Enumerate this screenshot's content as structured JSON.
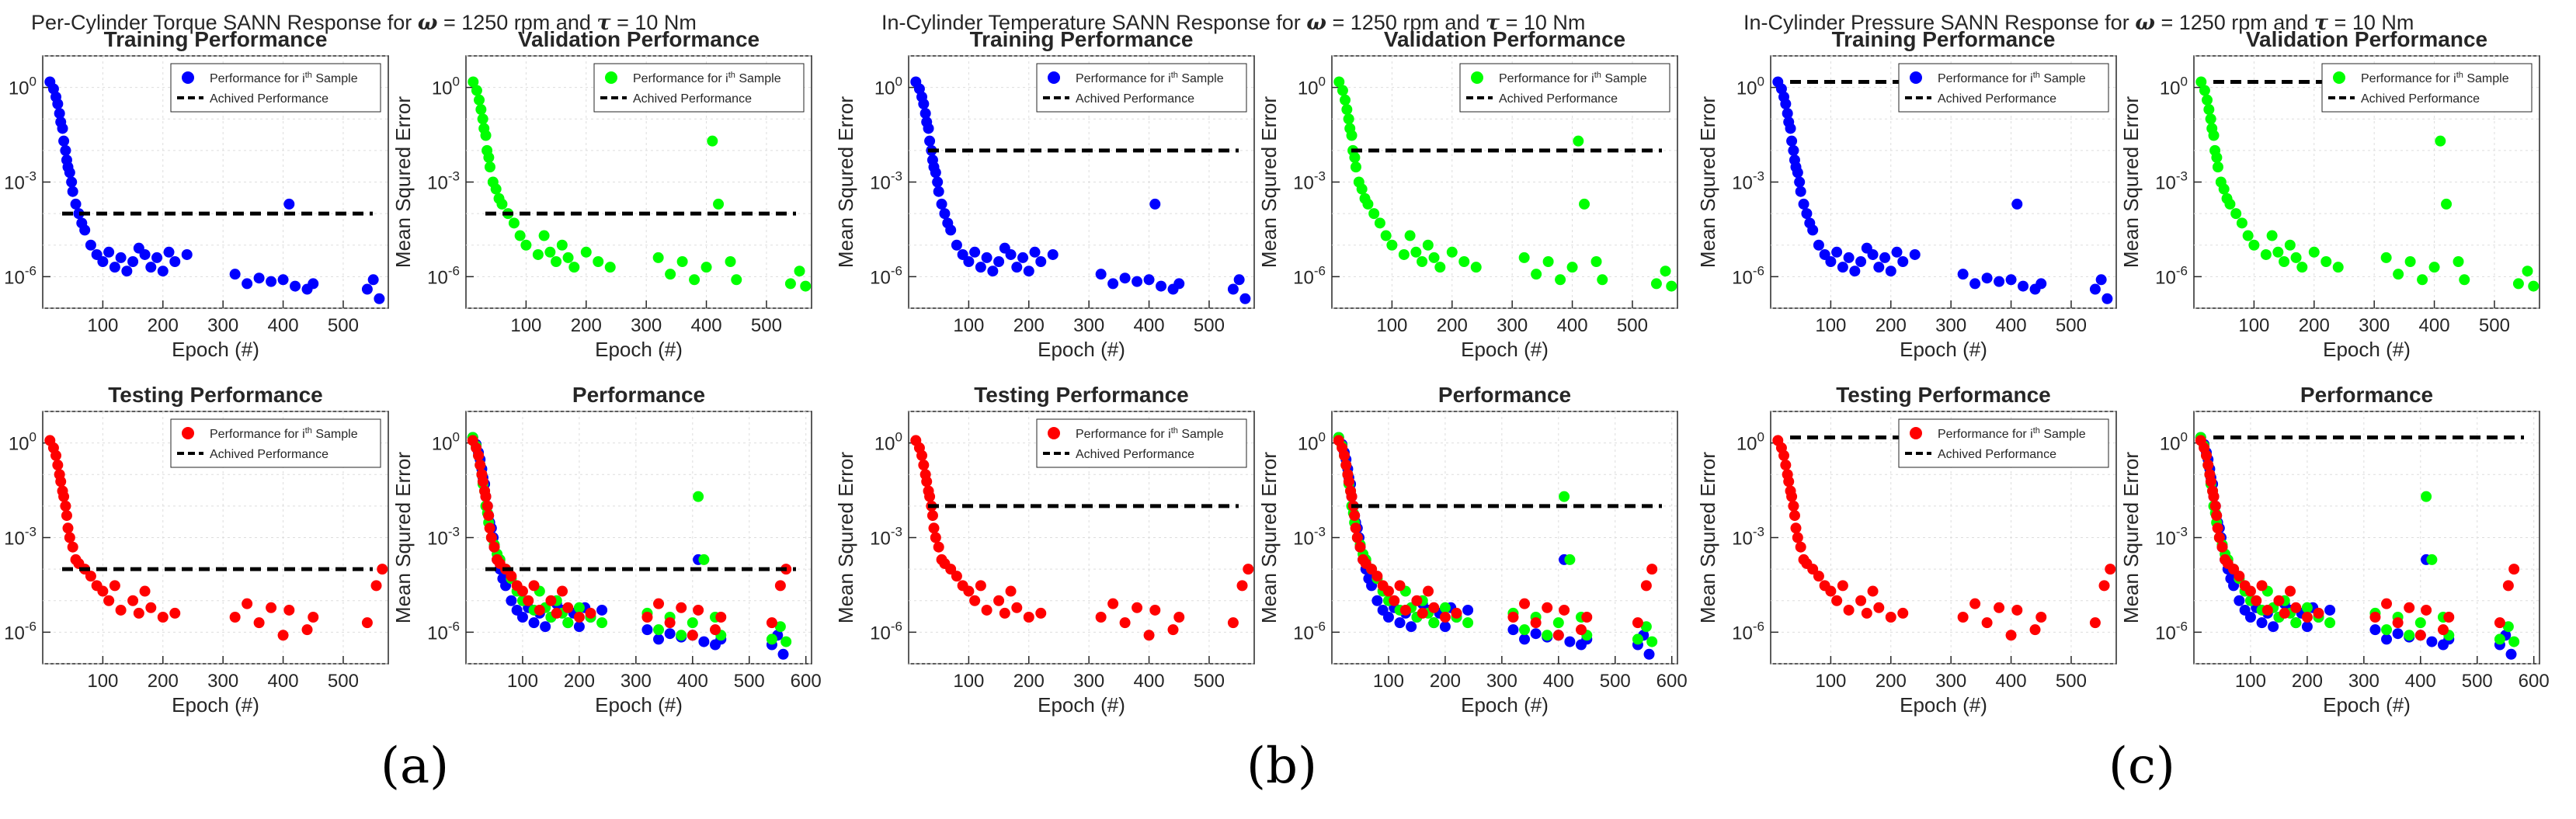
{
  "figure": {
    "panels": [
      {
        "id": "a",
        "caption": "(a)",
        "title_prefix": "Per-Cylinder Torque SANN Response for",
        "title_mid": "= 1250 rpm and",
        "title_suffix": "= 10 Nm",
        "omega_symbol": "ω",
        "tau_symbol": "τ"
      },
      {
        "id": "b",
        "caption": "(b)",
        "title_prefix": "In-Cylinder Temperature SANN Response for",
        "title_mid": "= 1250 rpm and",
        "title_suffix": "= 10 Nm",
        "omega_symbol": "ω",
        "tau_symbol": "τ"
      },
      {
        "id": "c",
        "caption": "(c)",
        "title_prefix": "In-Cylinder Pressure SANN Response for",
        "title_mid": "= 1250 rpm and",
        "title_suffix": "= 10 Nm",
        "omega_symbol": "ω",
        "tau_symbol": "τ"
      }
    ],
    "legend": {
      "sample_label": "Performance for i",
      "sample_sup": "th",
      "sample_tail": " Sample",
      "achieved_label": "Achived Performance"
    },
    "axes": {
      "xlabel": "Epoch (#)",
      "ylabel": "Mean Squred Error",
      "ytick_base": "10",
      "ytick_exponents": [
        "0",
        "-3",
        "-6"
      ],
      "xticks_top": [
        "100",
        "200",
        "300",
        "400",
        "500"
      ],
      "xticks_perf": [
        "100",
        "200",
        "300",
        "400",
        "500",
        "600"
      ]
    },
    "colors": {
      "training": "#0000ff",
      "validation": "#00ff00",
      "testing": "#ff0000",
      "achieved": "#000000"
    }
  },
  "chart_data": {
    "type": "scatter",
    "y_scale": "log10",
    "ylim": [
      1e-07,
      10
    ],
    "xlim_small": [
      0,
      575
    ],
    "xlim_performance": [
      0,
      610
    ],
    "subplot_titles": [
      "Training Performance",
      "Validation Performance",
      "Testing Performance",
      "Performance"
    ],
    "achieved_performance": {
      "a": 0.0001,
      "b": 0.01,
      "c": 1.5
    },
    "series": [
      {
        "name": "Training",
        "color": "#0000ff",
        "points": [
          [
            12,
            1.5
          ],
          [
            18,
            0.9
          ],
          [
            22,
            0.5
          ],
          [
            25,
            0.3
          ],
          [
            28,
            0.15
          ],
          [
            30,
            0.08
          ],
          [
            33,
            0.05
          ],
          [
            35,
            0.02
          ],
          [
            38,
            0.01
          ],
          [
            40,
            0.005
          ],
          [
            42,
            0.003
          ],
          [
            45,
            0.002
          ],
          [
            48,
            0.001
          ],
          [
            50,
            0.0005
          ],
          [
            55,
            0.0002
          ],
          [
            60,
            0.0001
          ],
          [
            65,
            5e-05
          ],
          [
            70,
            3e-05
          ],
          [
            80,
            1e-05
          ],
          [
            90,
            5e-06
          ],
          [
            100,
            3e-06
          ],
          [
            110,
            6e-06
          ],
          [
            120,
            2e-06
          ],
          [
            130,
            4e-06
          ],
          [
            140,
            1.5e-06
          ],
          [
            150,
            3e-06
          ],
          [
            160,
            8e-06
          ],
          [
            170,
            5e-06
          ],
          [
            180,
            2e-06
          ],
          [
            190,
            4e-06
          ],
          [
            200,
            1.5e-06
          ],
          [
            210,
            6e-06
          ],
          [
            220,
            3e-06
          ],
          [
            240,
            5e-06
          ],
          [
            320,
            1.2e-06
          ],
          [
            340,
            6e-07
          ],
          [
            360,
            9e-07
          ],
          [
            380,
            7e-07
          ],
          [
            400,
            8e-07
          ],
          [
            410,
            0.0002
          ],
          [
            420,
            5e-07
          ],
          [
            440,
            4e-07
          ],
          [
            450,
            6e-07
          ],
          [
            540,
            4e-07
          ],
          [
            550,
            8e-07
          ],
          [
            560,
            2e-07
          ]
        ]
      },
      {
        "name": "Validation",
        "color": "#00ff00",
        "points": [
          [
            12,
            1.5
          ],
          [
            18,
            0.8
          ],
          [
            22,
            0.4
          ],
          [
            25,
            0.2
          ],
          [
            28,
            0.1
          ],
          [
            30,
            0.05
          ],
          [
            33,
            0.03
          ],
          [
            35,
            0.01
          ],
          [
            38,
            0.006
          ],
          [
            40,
            0.003
          ],
          [
            45,
            0.001
          ],
          [
            50,
            0.0006
          ],
          [
            55,
            0.0003
          ],
          [
            60,
            0.0002
          ],
          [
            70,
            0.0001
          ],
          [
            80,
            5e-05
          ],
          [
            90,
            2e-05
          ],
          [
            100,
            1e-05
          ],
          [
            120,
            5e-06
          ],
          [
            130,
            2e-05
          ],
          [
            140,
            6e-06
          ],
          [
            150,
            3e-06
          ],
          [
            160,
            1e-05
          ],
          [
            170,
            4e-06
          ],
          [
            180,
            2e-06
          ],
          [
            200,
            6e-06
          ],
          [
            220,
            3e-06
          ],
          [
            240,
            2e-06
          ],
          [
            320,
            4e-06
          ],
          [
            340,
            1.2e-06
          ],
          [
            360,
            3e-06
          ],
          [
            380,
            8e-07
          ],
          [
            400,
            2e-06
          ],
          [
            410,
            0.02
          ],
          [
            420,
            0.0002
          ],
          [
            440,
            3e-06
          ],
          [
            450,
            8e-07
          ],
          [
            540,
            6e-07
          ],
          [
            555,
            1.5e-06
          ],
          [
            565,
            5e-07
          ]
        ]
      },
      {
        "name": "Testing",
        "color": "#ff0000",
        "points": [
          [
            12,
            1.2
          ],
          [
            18,
            0.7
          ],
          [
            22,
            0.4
          ],
          [
            25,
            0.2
          ],
          [
            28,
            0.1
          ],
          [
            30,
            0.06
          ],
          [
            33,
            0.03
          ],
          [
            35,
            0.02
          ],
          [
            38,
            0.01
          ],
          [
            40,
            0.005
          ],
          [
            42,
            0.002
          ],
          [
            45,
            0.001
          ],
          [
            50,
            0.0005
          ],
          [
            55,
            0.0002
          ],
          [
            60,
            0.00015
          ],
          [
            70,
            0.0001
          ],
          [
            80,
            6e-05
          ],
          [
            90,
            3e-05
          ],
          [
            100,
            2e-05
          ],
          [
            110,
            1e-05
          ],
          [
            120,
            3e-05
          ],
          [
            130,
            5e-06
          ],
          [
            150,
            1e-05
          ],
          [
            160,
            4e-06
          ],
          [
            170,
            2e-05
          ],
          [
            180,
            6e-06
          ],
          [
            200,
            3e-06
          ],
          [
            220,
            4e-06
          ],
          [
            320,
            3e-06
          ],
          [
            340,
            8e-06
          ],
          [
            360,
            2e-06
          ],
          [
            380,
            6e-06
          ],
          [
            400,
            8e-07
          ],
          [
            410,
            5e-06
          ],
          [
            440,
            1.2e-06
          ],
          [
            450,
            3e-06
          ],
          [
            540,
            2e-06
          ],
          [
            555,
            3e-05
          ],
          [
            565,
            0.0001
          ]
        ]
      }
    ]
  }
}
